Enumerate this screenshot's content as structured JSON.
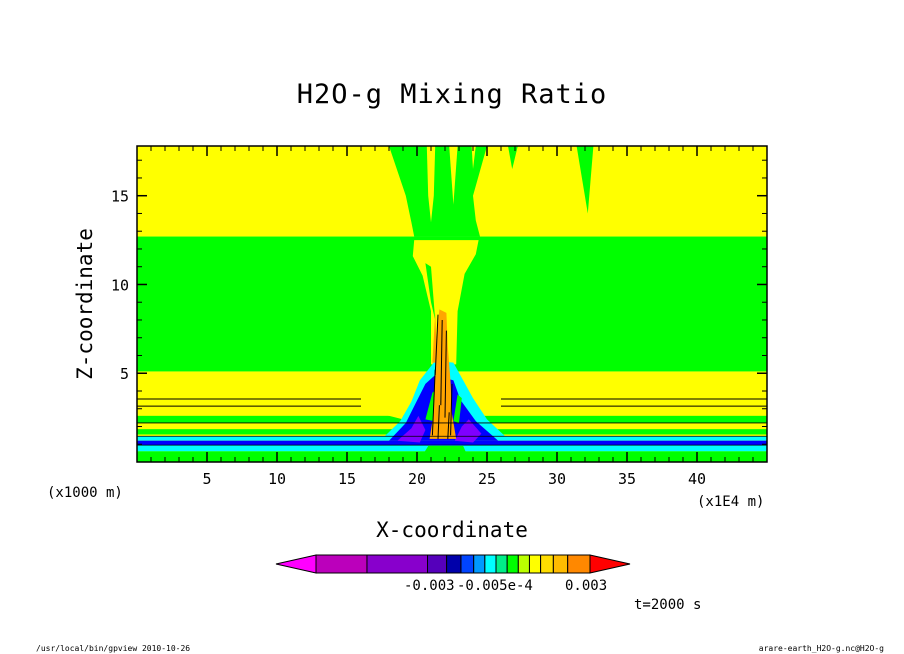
{
  "chart_data": {
    "type": "heatmap",
    "title": "H2O-g Mixing Ratio",
    "xlabel": "X-coordinate",
    "ylabel": "Z-coordinate",
    "x_unit": "(x1000 m)",
    "x_scale_note": "(x1E4 m)",
    "xlim": [
      0,
      45
    ],
    "ylim": [
      0,
      17.8
    ],
    "x_ticks": [
      "5",
      "10",
      "15",
      "20",
      "25",
      "30",
      "35",
      "40"
    ],
    "y_ticks": [
      "5",
      "10",
      "15"
    ],
    "time_label": "t=2000 s",
    "colorbar": {
      "colors": [
        "#ff00ff",
        "#bb00bb",
        "#8800cc",
        "#5500bb",
        "#0000aa",
        "#0044ff",
        "#0099ff",
        "#00ffff",
        "#00ee88",
        "#00ff00",
        "#bbff00",
        "#ffff00",
        "#ffdd00",
        "#ffbb00",
        "#ff8800",
        "#ff0000"
      ],
      "labels": [
        "-0.003",
        "-0.005e-4",
        "0.003"
      ]
    },
    "regions": {
      "green": "#00ff00",
      "yellow": "#ffff00",
      "orange": "#ffa500",
      "cyan": "#00ffff",
      "blue": "#0000ff",
      "purple": "#7f00ff"
    }
  },
  "footer": {
    "left": "/usr/local/bin/gpview   2010-10-26",
    "right": "arare-earth_H2O-g.nc@H2O-g"
  }
}
